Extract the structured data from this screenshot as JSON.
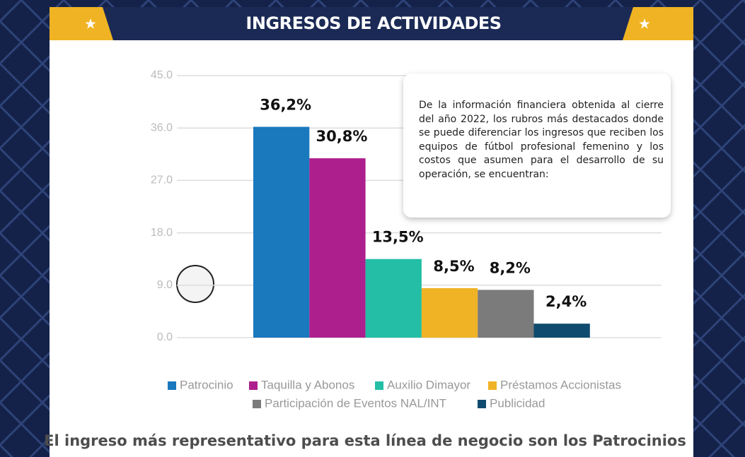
{
  "chart_data": {
    "type": "bar",
    "title": "INGRESOS DE ACTIVIDADES",
    "categories": [
      "Patrocinio",
      "Taquilla y Abonos",
      "Auxilio Dimayor",
      "Préstamos Accionistas",
      "Participación de Eventos NAL/INT",
      "Publicidad"
    ],
    "values": [
      36.2,
      30.8,
      13.5,
      8.5,
      8.2,
      2.4
    ],
    "value_labels": [
      "36,2%",
      "30,8%",
      "13,5%",
      "8,5%",
      "8,2%",
      "2,4%"
    ],
    "colors": [
      "#1a78bd",
      "#ae1f8e",
      "#23bea5",
      "#efb325",
      "#7b7b7b",
      "#0f4b6e"
    ],
    "ylim": [
      0,
      45
    ],
    "yticks": [
      {
        "value": 0,
        "label": "0.0"
      },
      {
        "value": 9,
        "label": "9.0"
      },
      {
        "value": 18,
        "label": "18.0"
      },
      {
        "value": 27,
        "label": "27.0"
      },
      {
        "value": 36,
        "label": "36.0"
      },
      {
        "value": 45,
        "label": "45.0"
      }
    ],
    "grid": true,
    "legend": "bottom",
    "annotation": "De la información financiera obtenida al cierre del año 2022, los rubros más destacados donde se puede diferenciar los ingresos que reciben los equipos de fútbol profesional femenino y los costos que asumen para el desarrollo de su operación, se encuentran:",
    "footer": "El ingreso más representativo para esta línea de negocio son los Patrocinios"
  }
}
